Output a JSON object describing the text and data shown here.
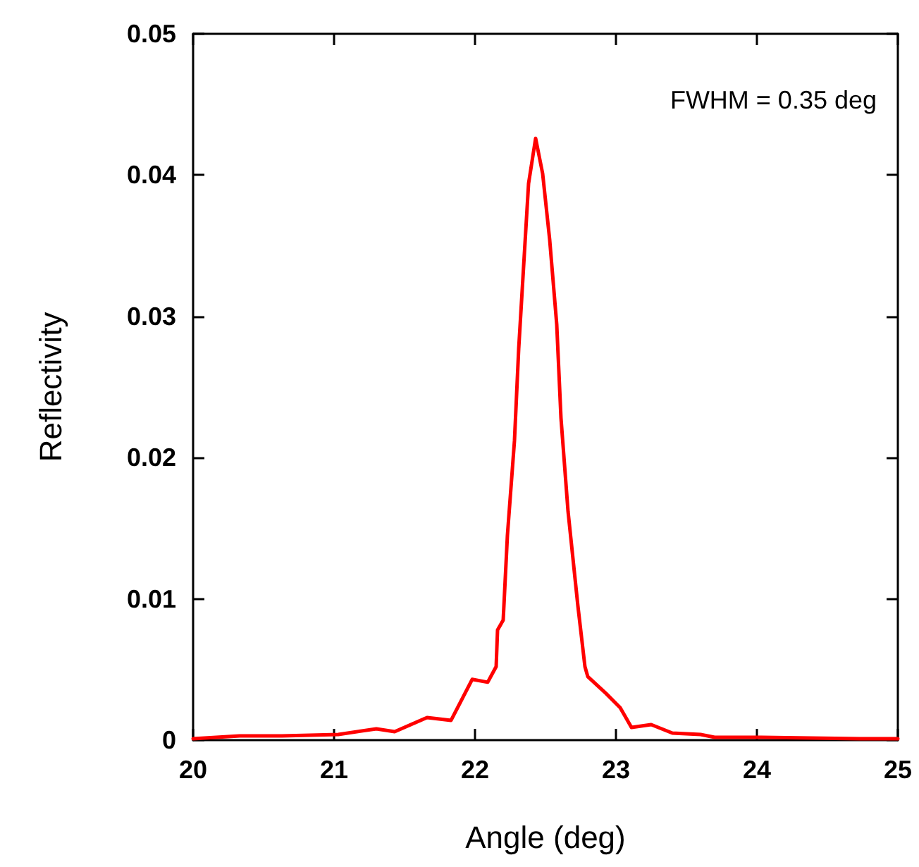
{
  "chart_data": {
    "type": "line",
    "xlabel": "Angle (deg)",
    "ylabel": "Reflectivity",
    "annotations": [
      "FWHM = 0.35 deg"
    ],
    "xlim": [
      20,
      25
    ],
    "xticks": [
      20,
      21,
      22,
      23,
      24,
      25
    ],
    "ylim": [
      0,
      0.05
    ],
    "yticks": [
      0,
      0.01,
      0.02,
      0.03,
      0.04,
      0.05
    ],
    "grid": false,
    "marker": "none",
    "line_style": "solid",
    "series": [
      {
        "color": "#ff0000",
        "x": [
          20,
          20.33,
          20.63,
          21.03,
          21.3,
          21.43,
          21.66,
          21.83,
          21.98,
          22.09,
          22.15,
          22.16,
          22.2,
          22.23,
          22.28,
          22.31,
          22.35,
          22.38,
          22.43,
          22.48,
          22.53,
          22.58,
          22.61,
          22.66,
          22.73,
          22.78,
          22.8,
          22.93,
          23.03,
          23.11,
          23.25,
          23.4,
          23.6,
          23.7,
          24.03,
          24.73,
          25
        ],
        "values": [
          0.0001,
          0.0003,
          0.0003,
          0.0004,
          0.0008,
          0.0006,
          0.0016,
          0.0014,
          0.0043,
          0.0041,
          0.0052,
          0.0078,
          0.0085,
          0.0145,
          0.0212,
          0.0277,
          0.0344,
          0.0394,
          0.0426,
          0.0401,
          0.0354,
          0.0294,
          0.0228,
          0.0162,
          0.0095,
          0.0052,
          0.0045,
          0.0033,
          0.0023,
          0.0009,
          0.0011,
          0.0005,
          0.0004,
          0.0002,
          0.0002,
          0.0001,
          0.0001
        ]
      }
    ]
  }
}
